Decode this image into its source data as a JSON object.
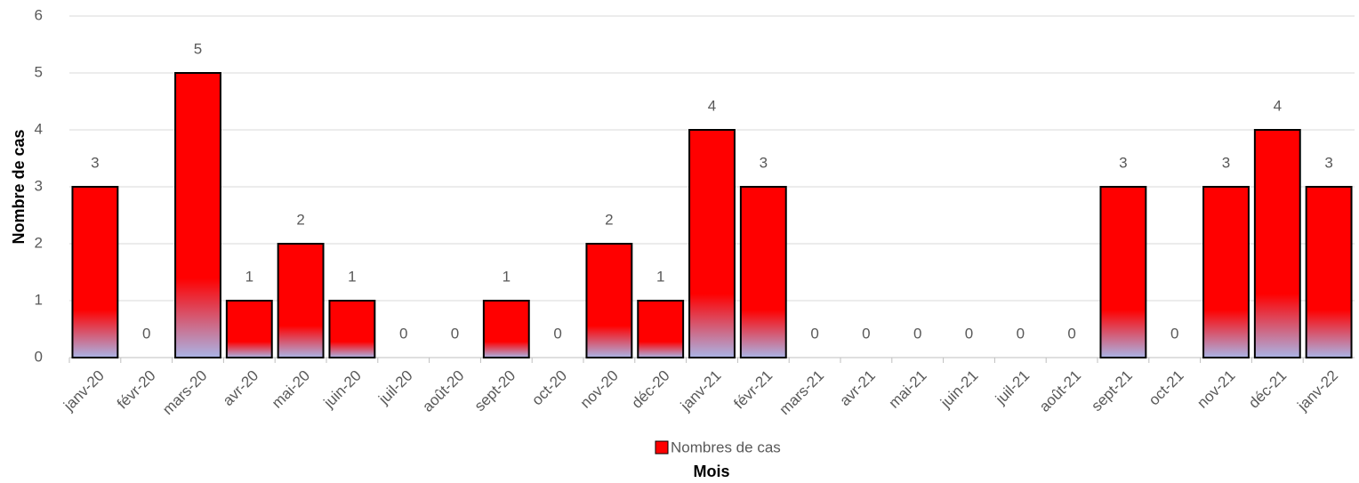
{
  "chart_data": {
    "type": "bar",
    "x_label": "Mois",
    "y_label": "Nombre de cas",
    "categories": [
      "janv-20",
      "févr-20",
      "mars-20",
      "avr-20",
      "mai-20",
      "juin-20",
      "juil-20",
      "août-20",
      "sept-20",
      "oct-20",
      "nov-20",
      "déc-20",
      "janv-21",
      "févr-21",
      "mars-21",
      "avr-21",
      "mai-21",
      "juin-21",
      "juil-21",
      "août-21",
      "sept-21",
      "oct-21",
      "nov-21",
      "déc-21",
      "janv-22"
    ],
    "series": [
      {
        "name": "Nombres de cas",
        "color": "#ff0000",
        "values": [
          3,
          0,
          5,
          1,
          2,
          1,
          0,
          0,
          1,
          0,
          2,
          1,
          4,
          3,
          0,
          0,
          0,
          0,
          0,
          0,
          3,
          0,
          3,
          4,
          3
        ]
      }
    ],
    "ylim": [
      0,
      6
    ],
    "yticks": [
      0,
      1,
      2,
      3,
      4,
      5,
      6
    ],
    "grid": true,
    "legend": "bottom"
  }
}
